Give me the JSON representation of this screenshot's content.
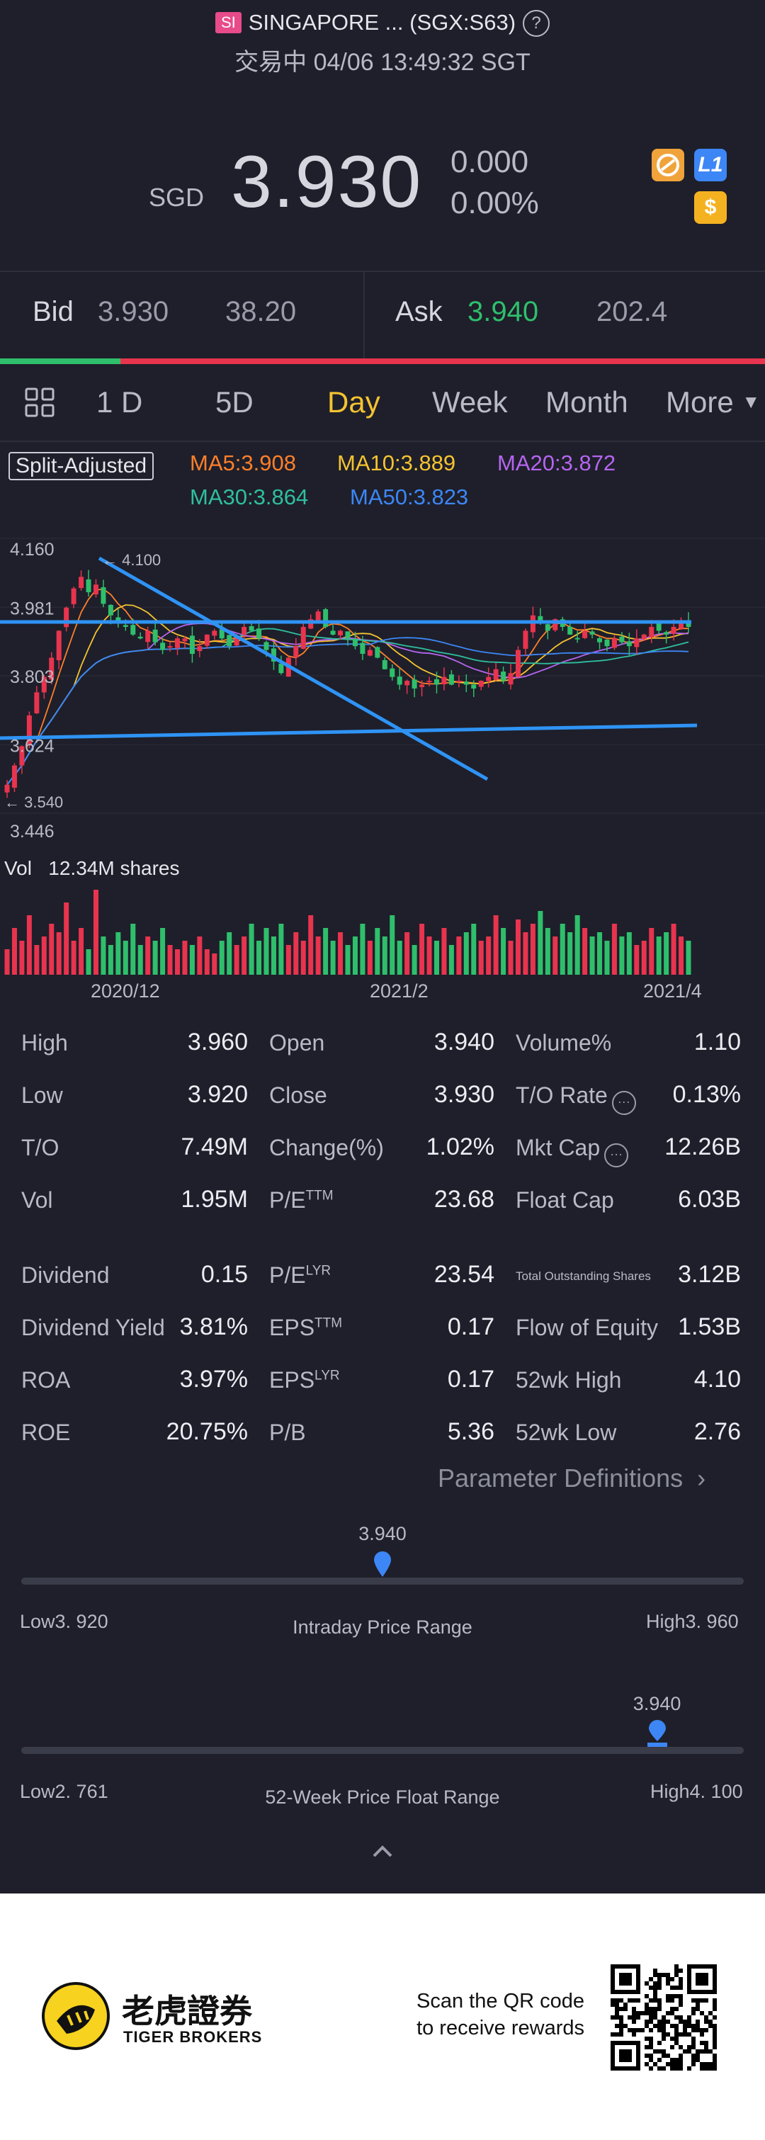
{
  "header": {
    "exchange_badge": "SI",
    "title": "SINGAPORE ... (SGX:S63)",
    "help": "?",
    "status": "交易中 04/06 13:49:32 SGT"
  },
  "quote": {
    "currency": "SGD",
    "price": "3.930",
    "change": "0.000",
    "change_pct": "0.00%",
    "badge_l1": "L1",
    "badge_dollar": "$"
  },
  "bid_ask": {
    "bid_label": "Bid",
    "bid_price": "3.930",
    "bid_size": "38.20",
    "ask_label": "Ask",
    "ask_price": "3.940",
    "ask_size": "202.4"
  },
  "tabs": {
    "t1": "1 D",
    "t2": "5D",
    "t3": "Day",
    "t4": "Week",
    "t5": "Month",
    "t6": "More",
    "more_icon": "triangle-down-icon",
    "active": "Day"
  },
  "ma_legend": {
    "split": "Split-Adjusted",
    "ma5": "MA5:3.908",
    "ma10": "MA10:3.889",
    "ma20": "MA20:3.872",
    "ma30": "MA30:3.864",
    "ma50": "MA50:3.823"
  },
  "colors": {
    "ma5": "#ff7f2a",
    "ma10": "#f5c331",
    "ma20": "#b565f0",
    "ma30": "#2fbfa0",
    "ma50": "#3d86f5",
    "up": "#e8344e",
    "down": "#2fbf6c",
    "trend": "#2f93f5"
  },
  "chart_data": {
    "type": "candlestick",
    "y_ticks": [
      "4.160",
      "3.981",
      "3.803",
      "3.624",
      "3.446"
    ],
    "ylim": [
      3.446,
      4.16
    ],
    "high_marker": "4.100",
    "low_marker": "3.540",
    "x_ticks": [
      "2020/12",
      "2021/2",
      "2021/4"
    ],
    "volume_label": "Vol",
    "volume_value": "12.34M shares",
    "close": [
      3.52,
      3.57,
      3.62,
      3.7,
      3.76,
      3.8,
      3.85,
      3.92,
      3.98,
      4.03,
      4.06,
      4.02,
      4.04,
      3.99,
      3.96,
      3.94,
      3.93,
      3.91,
      3.9,
      3.92,
      3.89,
      3.87,
      3.88,
      3.9,
      3.9,
      3.86,
      3.88,
      3.91,
      3.92,
      3.9,
      3.88,
      3.9,
      3.93,
      3.92,
      3.9,
      3.87,
      3.84,
      3.81,
      3.85,
      3.88,
      3.93,
      3.95,
      3.97,
      3.93,
      3.91,
      3.92,
      3.9,
      3.88,
      3.86,
      3.87,
      3.85,
      3.82,
      3.8,
      3.78,
      3.79,
      3.77,
      3.78,
      3.79,
      3.78,
      3.8,
      3.78,
      3.79,
      3.78,
      3.77,
      3.79,
      3.8,
      3.82,
      3.79,
      3.81,
      3.87,
      3.92,
      3.96,
      3.94,
      3.92,
      3.95,
      3.93,
      3.91,
      3.9,
      3.92,
      3.91,
      3.89,
      3.88,
      3.9,
      3.89,
      3.88,
      3.9,
      3.91,
      3.93,
      3.92,
      3.91,
      3.93,
      3.94,
      3.93
    ],
    "volume": [
      30,
      55,
      40,
      70,
      35,
      45,
      60,
      50,
      85,
      40,
      55,
      30,
      100,
      45,
      35,
      50,
      40,
      60,
      35,
      45,
      40,
      55,
      35,
      30,
      40,
      35,
      45,
      30,
      25,
      40,
      50,
      35,
      45,
      60,
      40,
      55,
      45,
      60,
      35,
      50,
      40,
      70,
      45,
      55,
      40,
      50,
      35,
      45,
      60,
      40,
      55,
      45,
      70,
      40,
      50,
      35,
      60,
      45,
      40,
      55,
      35,
      45,
      50,
      60,
      40,
      45,
      70,
      55,
      40,
      65,
      50,
      60,
      75,
      55,
      45,
      60,
      50,
      70,
      55,
      45,
      50,
      40,
      60,
      45,
      50,
      35,
      40,
      55,
      45,
      50,
      60,
      45,
      40
    ]
  },
  "stats": {
    "c1": [
      {
        "label": "High",
        "value": "3.960"
      },
      {
        "label": "Low",
        "value": "3.920"
      },
      {
        "label": "T/O",
        "value": "7.49M"
      },
      {
        "label": "Vol",
        "value": "1.95M"
      },
      {
        "label": "Dividend",
        "value": "0.15"
      },
      {
        "label": "Dividend Yield",
        "value": "3.81%"
      },
      {
        "label": "ROA",
        "value": "3.97%"
      },
      {
        "label": "ROE",
        "value": "20.75%"
      }
    ],
    "c2": [
      {
        "label": "Open",
        "value": "3.940"
      },
      {
        "label": "Close",
        "value": "3.930"
      },
      {
        "label": "Change(%)",
        "value": "1.02%"
      },
      {
        "label": "P/E",
        "sup": "TTM",
        "value": "23.68"
      },
      {
        "label": "P/E",
        "sup": "LYR",
        "value": "23.54"
      },
      {
        "label": "EPS",
        "sup": "TTM",
        "value": "0.17"
      },
      {
        "label": "EPS",
        "sup": "LYR",
        "value": "0.17"
      },
      {
        "label": "P/B",
        "value": "5.36"
      }
    ],
    "c3": [
      {
        "label": "Volume%",
        "value": "1.10"
      },
      {
        "label": "T/O Rate",
        "value": "0.13%"
      },
      {
        "label": "Mkt Cap",
        "value": "12.26B"
      },
      {
        "label": "Float Cap",
        "value": "6.03B"
      },
      {
        "label": "Total Outstanding Shares",
        "value": "3.12B"
      },
      {
        "label": "Flow of Equity",
        "value": "1.53B"
      },
      {
        "label": "52wk High",
        "value": "4.10"
      },
      {
        "label": "52wk Low",
        "value": "2.76"
      }
    ],
    "param_link": "Parameter Definitions"
  },
  "intraday_range": {
    "current": "3.940",
    "low": "Low3. 920",
    "title": "Intraday Price Range",
    "high": "High3. 960",
    "position": 0.5
  },
  "week52_range": {
    "current": "3.940",
    "low": "Low2. 761",
    "title": "52-Week Price Float Range",
    "high": "High4. 100",
    "position": 0.88
  },
  "collapse_icon": "chevron-up-icon",
  "footer": {
    "brand_cn": "老虎證券",
    "brand_en": "TIGER BROKERS",
    "cta_line1": "Scan the QR code",
    "cta_line2": "to receive rewards"
  }
}
